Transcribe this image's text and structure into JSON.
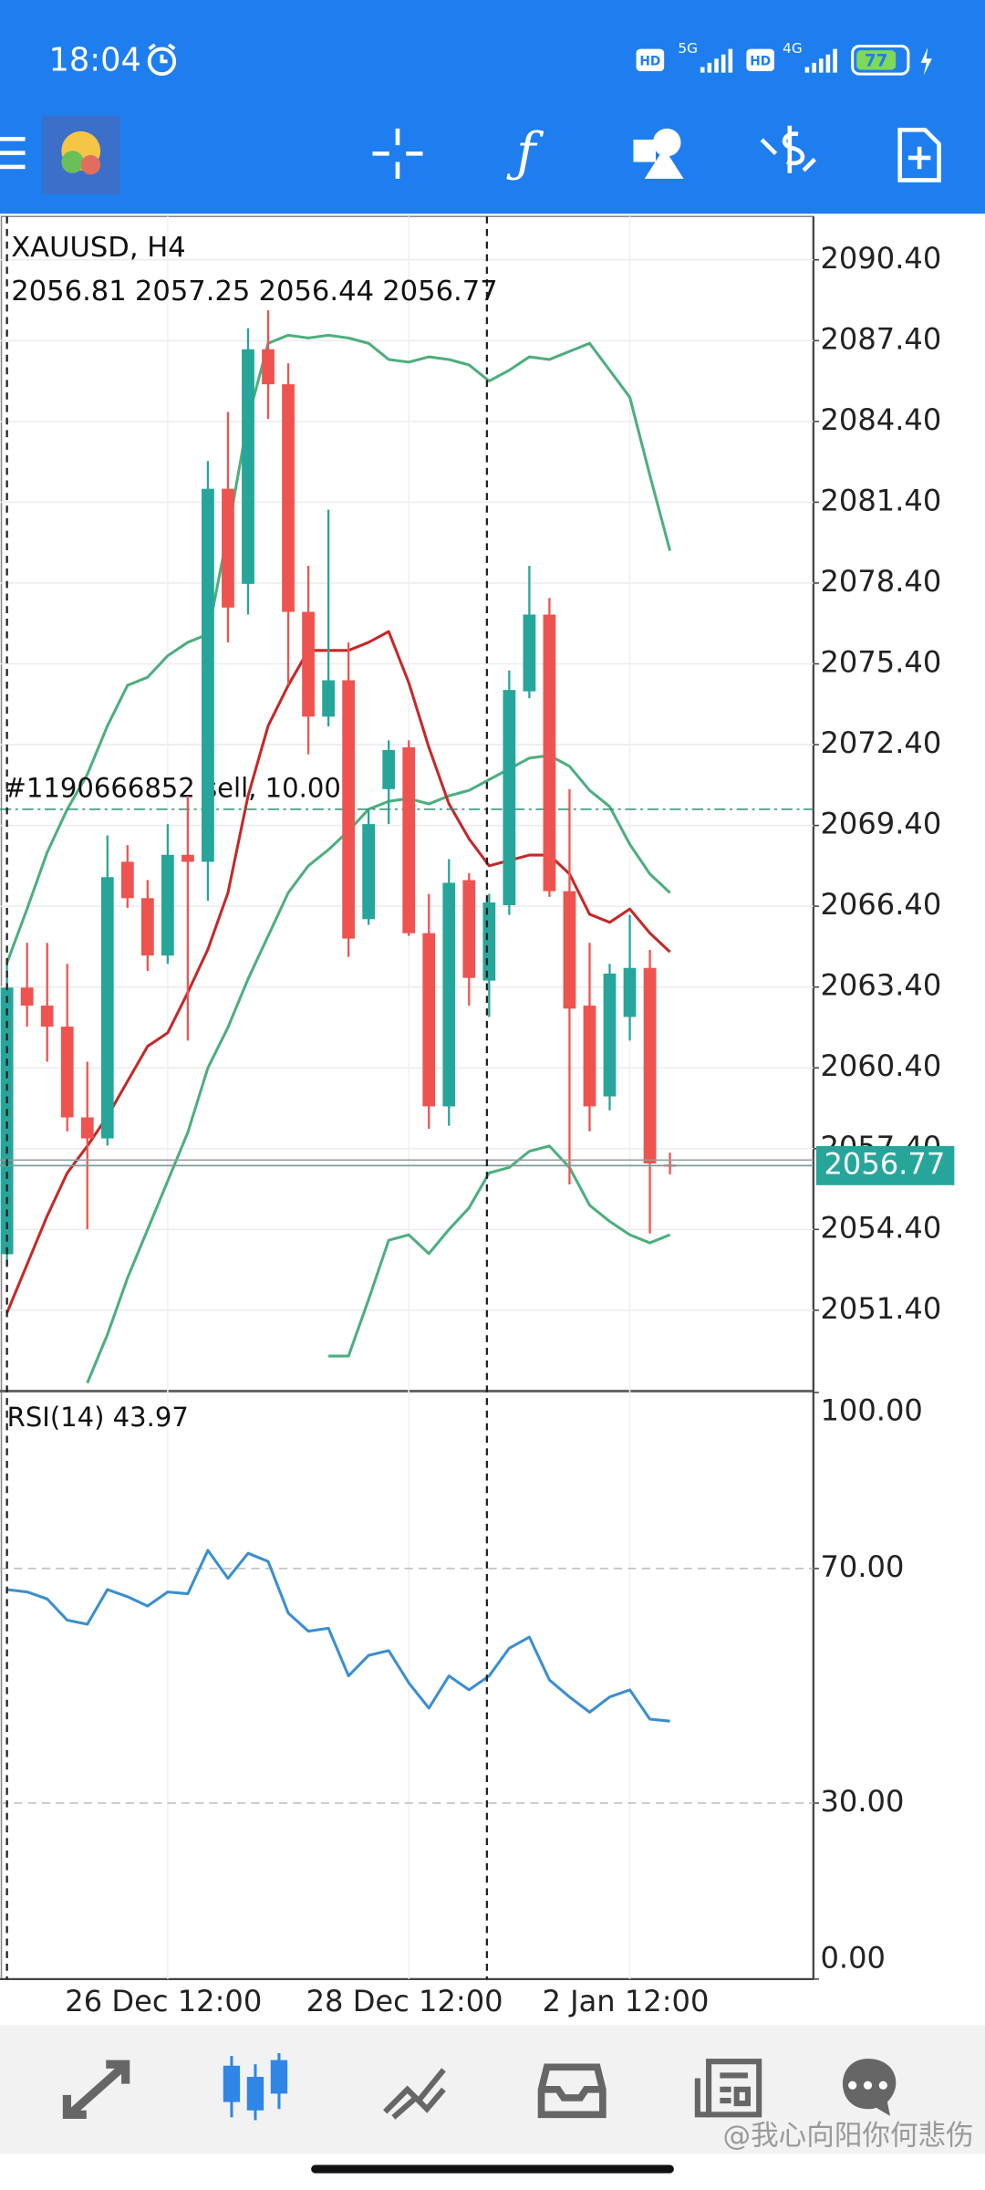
{
  "status_bar": {
    "time": "18:04",
    "hd1": "HD",
    "net1": "5G",
    "hd2": "HD",
    "net2": "4G",
    "battery": 77
  },
  "chart_data": [
    {
      "type": "candlestick",
      "title": "XAUUSD, H4",
      "categories": [
        null,
        null,
        null,
        null,
        null,
        null,
        null,
        null,
        "26 Dec 12:00",
        null,
        null,
        null,
        null,
        null,
        null,
        null,
        null,
        null,
        null,
        null,
        "28 Dec 12:00",
        null,
        null,
        null,
        null,
        null,
        null,
        null,
        null,
        null,
        null,
        "2 Jan 12:00",
        null,
        null
      ],
      "open": [
        2053.48,
        2063.38,
        2062.71,
        2061.93,
        2058.56,
        2057.78,
        2068.05,
        2066.7,
        2064.57,
        2068.31,
        2068.05,
        2081.9,
        2078.37,
        2087.08,
        2085.78,
        2077.33,
        2073.44,
        2074.79,
        2065.92,
        2070.75,
        2072.3,
        2065.4,
        2058.97,
        2067.37,
        2063.64,
        2066.44,
        2074.38,
        2077.23,
        2066.96,
        2062.71,
        2059.34,
        2062.29,
        2064.11,
        2056.81
      ],
      "high": [
        2064.26,
        2065.04,
        2065.04,
        2064.26,
        2060.63,
        2069.03,
        2068.67,
        2067.37,
        2069.45,
        2070.49,
        2082.93,
        2084.75,
        2087.86,
        2088.53,
        2086.56,
        2079.04,
        2081.12,
        2076.19,
        2069.97,
        2072.56,
        2072.56,
        2066.86,
        2068.15,
        2067.63,
        2066.86,
        2075.15,
        2079.04,
        2077.85,
        2070.75,
        2065.04,
        2064.26,
        2066.08,
        2064.78,
        2057.25
      ],
      "low": [
        2053.11,
        2061.93,
        2060.63,
        2058.04,
        2054.41,
        2057.52,
        2066.34,
        2064.0,
        2064.26,
        2061.41,
        2066.6,
        2076.19,
        2077.23,
        2084.49,
        2074.63,
        2072.04,
        2073.08,
        2064.52,
        2065.71,
        2069.45,
        2065.3,
        2058.14,
        2058.25,
        2062.71,
        2062.29,
        2066.08,
        2074.12,
        2066.75,
        2056.07,
        2058.04,
        2058.82,
        2061.41,
        2054.25,
        2056.44
      ],
      "close": [
        2063.38,
        2062.71,
        2061.93,
        2058.56,
        2057.78,
        2067.48,
        2066.7,
        2064.57,
        2068.31,
        2068.05,
        2081.9,
        2077.49,
        2087.08,
        2085.78,
        2077.33,
        2073.44,
        2074.79,
        2065.2,
        2069.45,
        2072.2,
        2065.4,
        2058.97,
        2067.27,
        2063.74,
        2066.54,
        2074.43,
        2077.23,
        2066.96,
        2062.6,
        2058.97,
        2063.9,
        2064.11,
        2056.85,
        2056.77
      ],
      "up_color": "#26a69a",
      "down_color": "#ef5350",
      "lines": [
        {
          "color": "#4caf7d",
          "values": [
            2064.3,
            2066.3,
            2068.4,
            2070.0,
            2071.3,
            2073.1,
            2074.6,
            2074.9,
            2075.7,
            2076.2,
            2076.5,
            2080.3,
            2084.5,
            2087.3,
            2087.6,
            2087.5,
            2087.6,
            2087.5,
            2087.3,
            2086.7,
            2086.6,
            2086.8,
            2086.7,
            2086.5,
            2085.9,
            2086.3,
            2086.8,
            2086.7,
            2087.0,
            2087.3,
            2086.3,
            2085.3,
            2082.4,
            2079.6
          ]
        },
        {
          "color": "#4caf7d",
          "values": [
            null,
            null,
            null,
            null,
            2048.7,
            2050.5,
            2052.6,
            2054.4,
            2056.2,
            2058.0,
            2060.4,
            2061.9,
            2063.7,
            2065.3,
            2066.9,
            2067.9,
            2068.5,
            2069.2,
            2070.0,
            2070.3,
            2070.4,
            2070.2,
            2070.5,
            2070.7,
            2071.1,
            2071.5,
            2071.9,
            2072.0,
            2071.6,
            2070.7,
            2070.1,
            2068.7,
            2067.6,
            2066.9
          ]
        },
        {
          "color": "#4caf7d",
          "values": [
            null,
            null,
            null,
            null,
            null,
            null,
            null,
            null,
            null,
            null,
            null,
            null,
            null,
            null,
            null,
            null,
            2049.7,
            2049.7,
            2051.8,
            2054.0,
            2054.2,
            2053.5,
            2054.4,
            2055.2,
            2056.5,
            2056.7,
            2057.3,
            2057.5,
            2056.7,
            2055.3,
            2054.7,
            2054.2,
            2053.9,
            2054.2
          ]
        },
        {
          "color": "#c62828",
          "values": [
            2051.3,
            2053.1,
            2054.9,
            2056.5,
            2057.5,
            2058.6,
            2059.9,
            2061.2,
            2061.7,
            2063.2,
            2064.8,
            2066.9,
            2070.5,
            2073.1,
            2074.6,
            2075.9,
            2075.9,
            2075.9,
            2076.2,
            2076.6,
            2074.7,
            2072.3,
            2070.2,
            2068.9,
            2067.9,
            2068.1,
            2068.3,
            2068.3,
            2067.6,
            2066.1,
            2065.8,
            2066.3,
            2065.4,
            2064.7
          ]
        }
      ],
      "order": {
        "label": "#1190666852 sell, 10.00",
        "value": 2070.0,
        "color": "#2a8f7a"
      },
      "price_box_color": "#26a69a",
      "ylim": [
        2048.45,
        2092.01
      ],
      "yticks": [
        {
          "value": 2051.4,
          "label": "2051.40"
        },
        {
          "value": 2054.4,
          "label": "2054.40"
        },
        {
          "value": 2057.4,
          "label": "2057.40"
        },
        {
          "value": 2060.4,
          "label": "2060.40"
        },
        {
          "value": 2063.4,
          "label": "2063.40"
        },
        {
          "value": 2066.4,
          "label": "2066.40"
        },
        {
          "value": 2069.4,
          "label": "2069.40"
        },
        {
          "value": 2072.4,
          "label": "2072.40"
        },
        {
          "value": 2075.4,
          "label": "2075.40"
        },
        {
          "value": 2078.4,
          "label": "2078.40"
        },
        {
          "value": 2081.4,
          "label": "2081.40"
        },
        {
          "value": 2084.4,
          "label": "2084.40"
        },
        {
          "value": 2087.4,
          "label": "2087.40"
        },
        {
          "value": 2090.4,
          "label": "2090.40"
        }
      ],
      "grid": true
    },
    {
      "type": "line",
      "title": "RSI(14)",
      "color": "#3a8fd0",
      "values": [
        66.4,
        66.0,
        64.8,
        61.2,
        60.5,
        66.4,
        65.2,
        63.6,
        66.0,
        65.7,
        73.1,
        68.3,
        72.6,
        71.2,
        62.4,
        59.3,
        59.8,
        51.7,
        55.2,
        56.0,
        50.5,
        46.2,
        51.7,
        49.3,
        51.7,
        56.4,
        58.3,
        51.0,
        48.1,
        45.5,
        48.1,
        49.3,
        44.3,
        43.97
      ],
      "ylim": [
        0,
        100
      ],
      "yticks": [
        {
          "value": 0,
          "label": "0.00"
        },
        {
          "value": 30,
          "label": "30.00"
        },
        {
          "value": 70,
          "label": "70.00"
        },
        {
          "value": 100,
          "label": "100.00"
        }
      ]
    }
  ],
  "watermark": "@我心向阳你何悲伤"
}
